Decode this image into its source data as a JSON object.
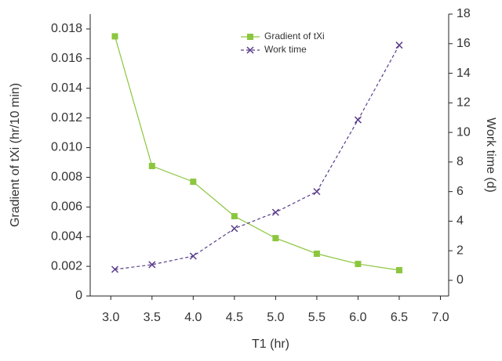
{
  "chart_data": {
    "type": "line",
    "xlabel": "T1 (hr)",
    "ylabel": "Gradient of tXi (hr/10 min)",
    "y2label": "Work time (d)",
    "x": [
      3.05,
      3.5,
      4.0,
      4.5,
      5.0,
      5.5,
      6.0,
      6.5
    ],
    "series": [
      {
        "name": "Gradient of tXi",
        "color": "#8cc63f",
        "marker": "square",
        "dashed": false,
        "axis": "y",
        "values": [
          0.0175,
          0.00876,
          0.0077,
          0.00538,
          0.0039,
          0.00285,
          0.00216,
          0.00174
        ]
      },
      {
        "name": "Work time",
        "color": "#5a3d8a",
        "marker": "x",
        "dashed": true,
        "axis": "y2",
        "values": [
          0.74,
          1.06,
          1.64,
          3.5,
          4.6,
          6.0,
          10.85,
          15.9
        ]
      }
    ],
    "xlim": [
      2.75,
      7.1
    ],
    "xticks": [
      {
        "value": 3,
        "label": "3.0"
      },
      3.5,
      {
        "value": 4,
        "label": "4.0"
      },
      4.5,
      {
        "value": 5,
        "label": "5.0"
      },
      5.5,
      {
        "value": 6,
        "label": "6.0"
      },
      6.5,
      {
        "value": 7,
        "label": "7.0"
      }
    ],
    "ylim": [
      0,
      0.019
    ],
    "yticks": [
      0,
      0.002,
      0.004,
      0.006,
      0.008,
      {
        "value": 0.01,
        "label": "0.010"
      },
      0.012,
      0.014,
      0.016,
      0.018
    ],
    "y2lim": [
      -1.06,
      18
    ],
    "y2ticks": [
      0,
      2,
      4,
      6,
      8,
      10,
      12,
      14,
      16,
      18
    ],
    "grid": false,
    "legend": "top"
  }
}
